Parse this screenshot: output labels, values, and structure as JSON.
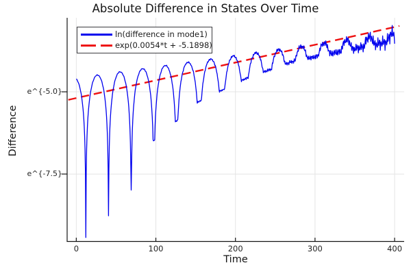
{
  "title": "Absolute Difference in States Over Time",
  "chart_data": {
    "type": "line",
    "title": "Absolute Difference in States Over Time",
    "xlabel": "Time",
    "ylabel": "Difference",
    "yaxis_scale": "log-e (tick labels shown as e^{x})",
    "grid": true,
    "xlim": [
      -11.5,
      412
    ],
    "ylim_ln": [
      -9.55,
      -2.75
    ],
    "x_ticks": [
      {
        "value": 0,
        "label": "0"
      },
      {
        "value": 100,
        "label": "100"
      },
      {
        "value": 200,
        "label": "200"
      },
      {
        "value": 300,
        "label": "300"
      },
      {
        "value": 400,
        "label": "400"
      }
    ],
    "y_ticks": [
      {
        "ln": -5.0,
        "label": "e^{-5.0}"
      },
      {
        "ln": -7.5,
        "label": "e^{-7.5}"
      }
    ],
    "legend": {
      "position": "top-left",
      "entries": [
        {
          "label": "ln(difference in mode1)",
          "color": "#0000ee",
          "style": "solid"
        },
        {
          "label": "exp(0.0054*t + -5.1898)",
          "color": "#ee1111",
          "style": "dashed"
        }
      ]
    },
    "series": [
      {
        "name": "ln(difference in mode1)",
        "kind": "beating-oscillation-on-log-axis",
        "color": "#0000ee",
        "line_width": 1.3,
        "t_start": 0,
        "t_end": 400,
        "dt": 0.5,
        "model": {
          "envelope_ln_intercept": -4.58,
          "envelope_ln_slope": 0.0034,
          "beat_period": 28.5,
          "first_cusp_t": 12,
          "cusp_depth_anchors": [
            [
              0,
              5.1
            ],
            [
              12,
              4.9
            ],
            [
              65,
              3.85
            ],
            [
              94,
              2.3
            ],
            [
              154,
              1.24
            ],
            [
              213,
              0.74
            ],
            [
              272,
              0.42
            ],
            [
              400,
              0.22
            ]
          ],
          "noise": {
            "base": 0.0026,
            "efold": 100,
            "jitter": 0.008
          }
        }
      },
      {
        "name": "exp(0.0054*t + -5.1898)",
        "kind": "linear-fit-in-ln-space",
        "color": "#ee1111",
        "line_width": 2.4,
        "dash": [
          12,
          7
        ],
        "slope": 0.0054,
        "intercept": -5.1898,
        "t_start": -10,
        "t_end": 406
      }
    ],
    "colors": {
      "grid": "#e4e4e4",
      "axis": "#141414",
      "tick_text": "#232323",
      "background": "#ffffff"
    }
  }
}
